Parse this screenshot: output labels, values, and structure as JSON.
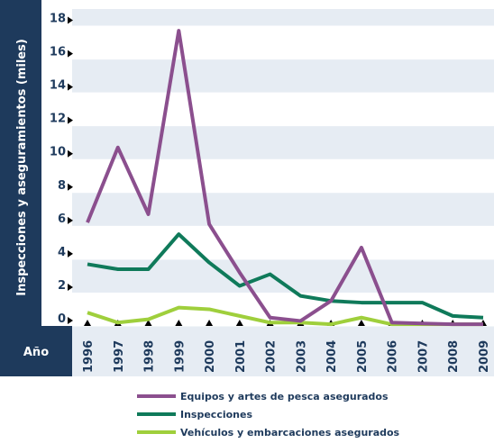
{
  "chart_data": {
    "type": "line",
    "y_label": "Inspecciones y aseguramientos (miles)",
    "x_label": "Año",
    "categories": [
      "1996",
      "1997",
      "1998",
      "1999",
      "2000",
      "2001",
      "2002",
      "2003",
      "2004",
      "2005",
      "2006",
      "2007",
      "2008",
      "2009"
    ],
    "series": [
      {
        "name": "Equipos y artes de pesca asegurados",
        "color": "#8b4f8e",
        "values": [
          6.2,
          10.7,
          6.7,
          17.7,
          6.1,
          3.2,
          0.5,
          0.3,
          1.5,
          4.7,
          0.2,
          0.15,
          0.1,
          0.1
        ]
      },
      {
        "name": "Inspecciones",
        "color": "#0f7a5a",
        "values": [
          3.7,
          3.4,
          3.4,
          5.5,
          3.8,
          2.4,
          3.1,
          1.8,
          1.5,
          1.4,
          1.4,
          1.4,
          0.6,
          0.5
        ]
      },
      {
        "name": "Vehículos y embarcaciones asegurados",
        "color": "#9fcf3c",
        "values": [
          0.8,
          0.2,
          0.4,
          1.1,
          1.0,
          0.6,
          0.2,
          0.2,
          0.1,
          0.5,
          0.1,
          0.1,
          0.1,
          0.1
        ]
      }
    ],
    "ylim": [
      0,
      19
    ],
    "yticks": [
      0,
      2,
      4,
      6,
      8,
      10,
      12,
      14,
      16,
      18
    ],
    "grid": true
  }
}
